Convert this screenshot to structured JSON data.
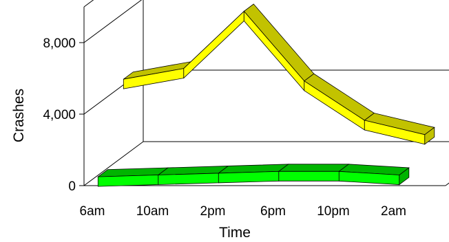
{
  "chart_data": {
    "type": "line",
    "style": "3d-ribbon",
    "xlabel": "Time",
    "ylabel": "Crashes",
    "categories": [
      "6am",
      "10am",
      "2pm",
      "6pm",
      "10pm",
      "2am"
    ],
    "ylim": [
      0,
      10000
    ],
    "yticks": [
      0,
      4000,
      8000
    ],
    "ytick_labels": [
      "0",
      "4,000",
      "8,000"
    ],
    "grid": true,
    "series": [
      {
        "values": [
          4600,
          5200,
          8400,
          4500,
          2300,
          1500
        ],
        "color": "#FFFF00",
        "side_color": "#C2C200"
      },
      {
        "values": [
          200,
          300,
          400,
          500,
          500,
          300
        ],
        "color": "#00FF00",
        "side_color": "#00B400"
      }
    ]
  }
}
